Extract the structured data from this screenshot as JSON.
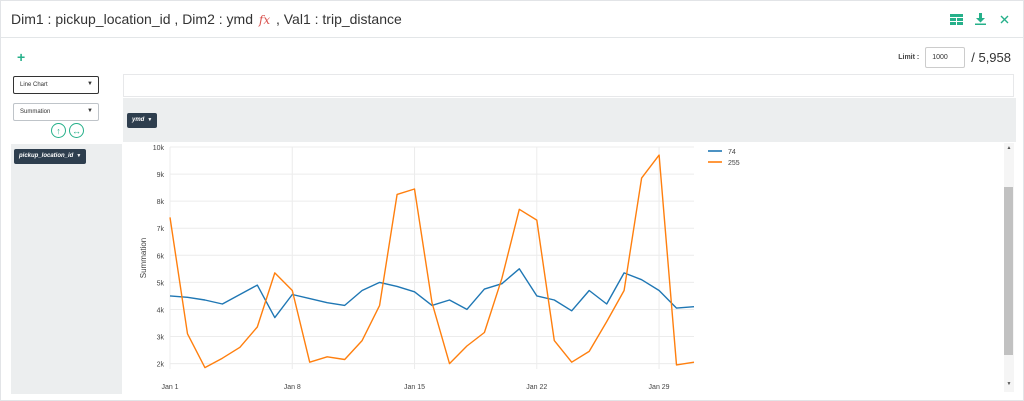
{
  "header": {
    "title_pre": "Dim1 : pickup_location_id , Dim2 : ymd ",
    "title_fx": "fx",
    "title_post": " , Val1 : trip_distance",
    "icons": [
      "table-icon",
      "download-icon",
      "close-icon"
    ]
  },
  "toolbar": {
    "add_label": "+",
    "limit_label": "Limit :",
    "limit_value": "1000",
    "total_label": "/ 5,958"
  },
  "controls": {
    "chart_type": "Line Chart",
    "aggregation": "Summation",
    "swap_vertical_icon": "↑",
    "swap_horizontal_icon": "↔"
  },
  "pivot": {
    "column_field": "ymd",
    "row_field": "pickup_location_id"
  },
  "colors": {
    "accent": "#26b08a",
    "series_74": "#1f77b4",
    "series_255": "#ff7f0e",
    "pill": "#2e3e4e"
  },
  "chart_data": {
    "type": "line",
    "ylabel": "Summation",
    "xlabel": "",
    "ylim": [
      1800,
      10000
    ],
    "yticks": [
      2000,
      3000,
      4000,
      5000,
      6000,
      7000,
      8000,
      9000,
      10000
    ],
    "ytick_labels": [
      "2k",
      "3k",
      "4k",
      "5k",
      "6k",
      "7k",
      "8k",
      "9k",
      "10k"
    ],
    "xticks": [
      1,
      8,
      15,
      22,
      29
    ],
    "xtick_labels": [
      "Jan 1",
      "Jan 8",
      "Jan 15",
      "Jan 22",
      "Jan 29"
    ],
    "xlim": [
      1,
      31
    ],
    "legend_position": "top-right",
    "series": [
      {
        "name": "74",
        "x": [
          1,
          2,
          3,
          4,
          5,
          6,
          7,
          8,
          9,
          10,
          11,
          12,
          13,
          14,
          15,
          16,
          17,
          18,
          19,
          20,
          21,
          22,
          23,
          24,
          25,
          26,
          27,
          28,
          29,
          30,
          31
        ],
        "values": [
          4500,
          4450,
          4350,
          4200,
          4550,
          4900,
          3700,
          4550,
          4400,
          4250,
          4150,
          4700,
          5000,
          4850,
          4650,
          4150,
          4350,
          4000,
          4750,
          4950,
          5500,
          4500,
          4350,
          3950,
          4700,
          4200,
          5350,
          5100,
          4700,
          4050,
          4100
        ]
      },
      {
        "name": "255",
        "x": [
          1,
          2,
          3,
          4,
          5,
          6,
          7,
          8,
          9,
          10,
          11,
          12,
          13,
          14,
          15,
          16,
          17,
          18,
          19,
          20,
          21,
          22,
          23,
          24,
          25,
          26,
          27,
          28,
          29,
          30,
          31
        ],
        "values": [
          7400,
          3100,
          1850,
          2200,
          2600,
          3350,
          5350,
          4700,
          2050,
          2250,
          2150,
          2850,
          4150,
          8250,
          8450,
          4250,
          2000,
          2650,
          3150,
          5150,
          7700,
          7300,
          2850,
          2050,
          2450,
          3550,
          4700,
          8850,
          9700,
          1950,
          2050
        ]
      }
    ]
  }
}
